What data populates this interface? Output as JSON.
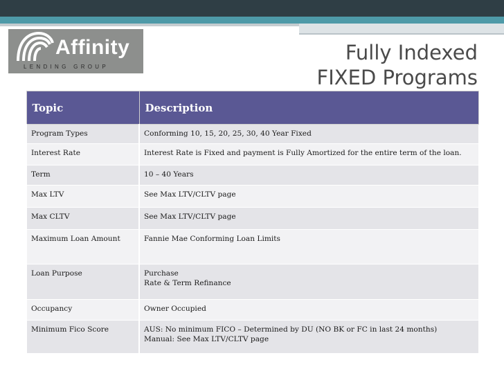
{
  "logo": {
    "name": "Affinity",
    "tagline": "LENDING GROUP"
  },
  "title": {
    "line1": "Fully Indexed",
    "line2": "FIXED Programs"
  },
  "table": {
    "headers": [
      "Topic",
      "Description"
    ],
    "rows": [
      {
        "topic": "Program Types",
        "lines": [
          "Conforming 10, 15, 20, 25, 30, 40 Year Fixed"
        ]
      },
      {
        "topic": "Interest Rate",
        "lines": [
          "Interest Rate is Fixed and payment is Fully Amortized for the entire term of the loan."
        ]
      },
      {
        "topic": "Term",
        "lines": [
          "10 – 40 Years"
        ]
      },
      {
        "topic": "Max LTV",
        "lines": [
          "See Max LTV/CLTV page"
        ]
      },
      {
        "topic": "Max CLTV",
        "lines": [
          "See Max LTV/CLTV page"
        ]
      },
      {
        "topic": "Maximum Loan Amount",
        "lines": [
          "Fannie Mae Conforming Loan Limits"
        ]
      },
      {
        "topic": "Loan Purpose",
        "lines": [
          "Purchase",
          "Rate & Term Refinance"
        ]
      },
      {
        "topic": "Occupancy",
        "lines": [
          "Owner Occupied"
        ]
      },
      {
        "topic": "Minimum Fico Score",
        "lines": [
          "AUS:  No minimum FICO – Determined by DU (NO BK or FC in last 24 months)",
          "Manual:  See Max LTV/CLTV page"
        ]
      }
    ]
  }
}
